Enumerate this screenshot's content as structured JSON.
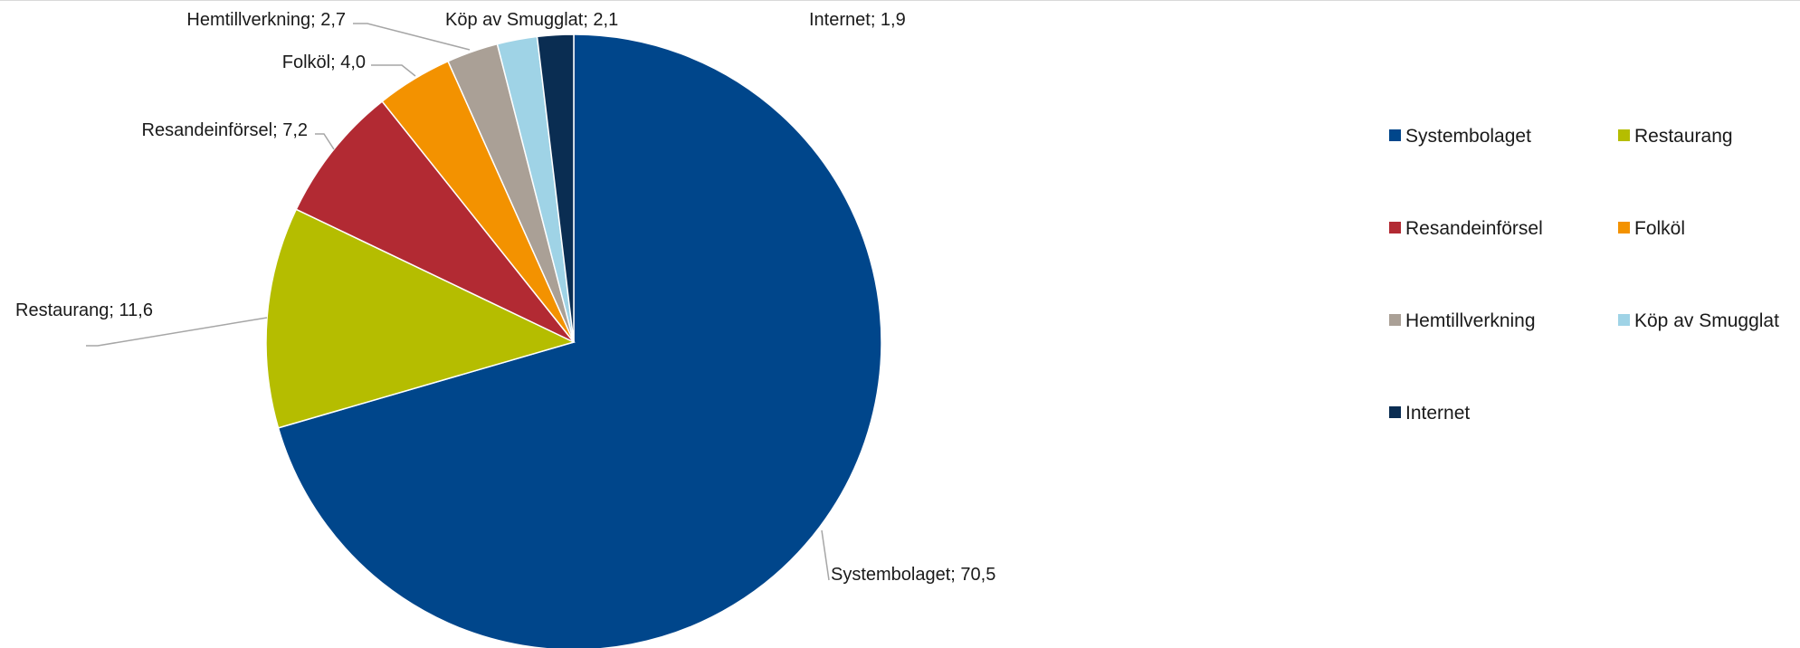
{
  "chart_data": {
    "type": "pie",
    "title": "",
    "start_angle_deg": 0,
    "direction": "clockwise",
    "legend_position": "right",
    "slices": [
      {
        "name": "Systembolaget",
        "value": 70.5,
        "label": "Systembolaget; 70,5",
        "color": "#00468b"
      },
      {
        "name": "Restaurang",
        "value": 11.6,
        "label": "Restaurang; 11,6",
        "color": "#b5bd00"
      },
      {
        "name": "Resandeinförsel",
        "value": 7.2,
        "label": "Resandeinförsel; 7,2",
        "color": "#b22a33"
      },
      {
        "name": "Folköl",
        "value": 4.0,
        "label": "Folköl; 4,0",
        "color": "#f39200"
      },
      {
        "name": "Hemtillverkning",
        "value": 2.7,
        "label": "Hemtillverkning; 2,7",
        "color": "#aaa096"
      },
      {
        "name": "Köp av Smugglat",
        "value": 2.1,
        "label": "Köp av Smugglat; 2,1",
        "color": "#9fd3e6"
      },
      {
        "name": "Internet",
        "value": 1.9,
        "label": "Internet; 1,9",
        "color": "#0a2d52"
      }
    ]
  }
}
